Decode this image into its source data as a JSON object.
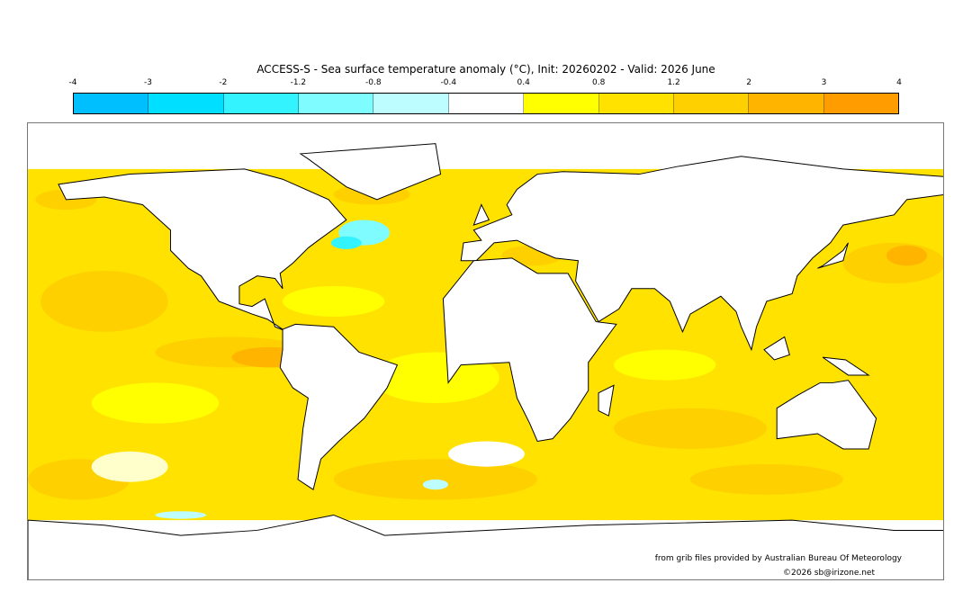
{
  "title": "ACCESS-S - Sea surface temperature anomaly (°C), Init: 20260202 - Valid: 2026 June",
  "colorbar": {
    "ticks": [
      "-4",
      "-3",
      "-2",
      "-1.2",
      "-0.8",
      "-0.4",
      "0.4",
      "0.8",
      "1.2",
      "2",
      "3",
      "4"
    ],
    "colors": [
      "#00bfff",
      "#00dfff",
      "#33f3ff",
      "#7ffcff",
      "#bdfdff",
      "#ffffff",
      "#ffff00",
      "#ffe200",
      "#ffd000",
      "#ffb400",
      "#ff9c00"
    ]
  },
  "credits": {
    "source": "from grib files provided by Australian Bureau Of Meteorology",
    "copyright": "©2026 sb@irizone.net"
  }
}
